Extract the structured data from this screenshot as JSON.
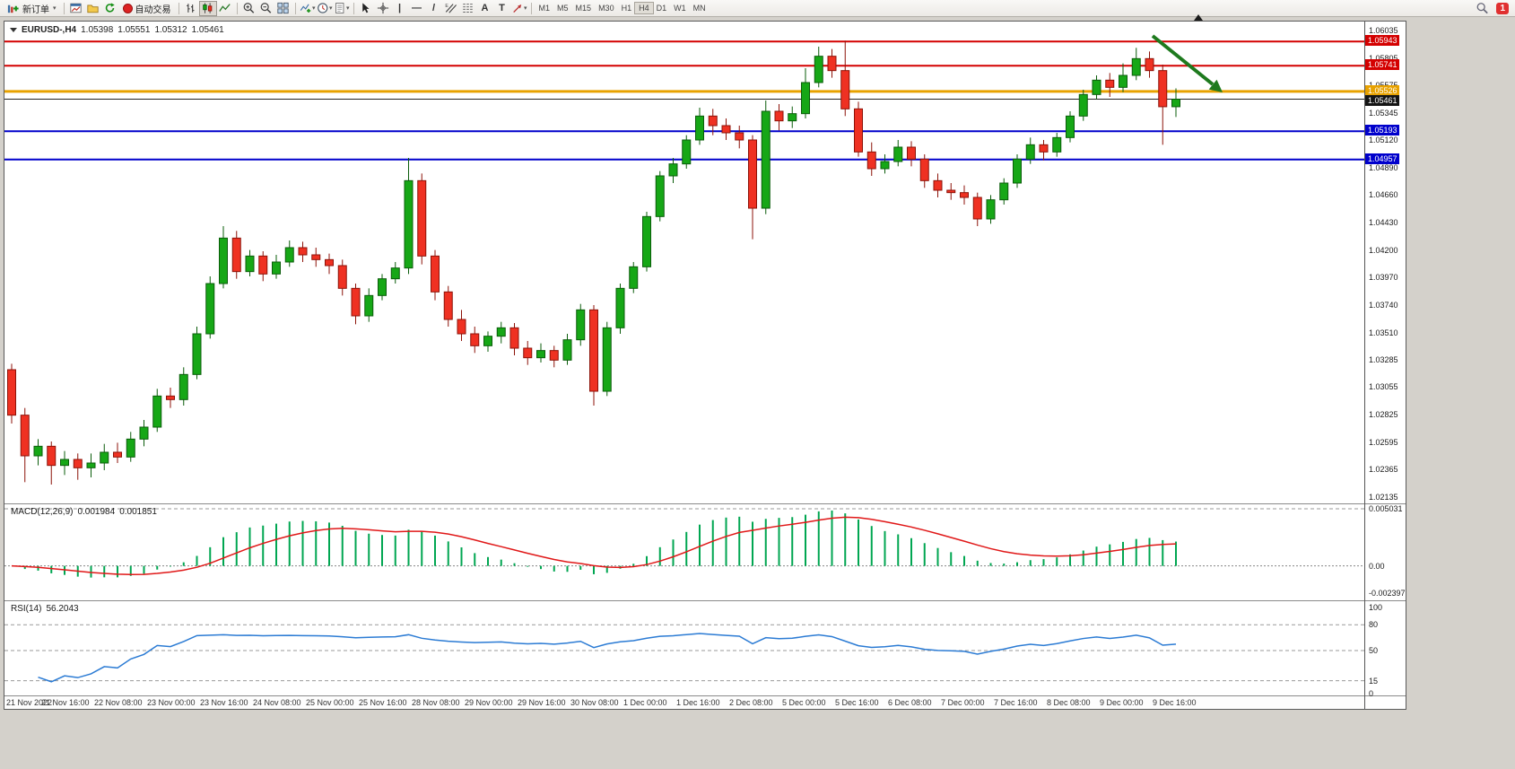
{
  "toolbar": {
    "new_order_label": "新订单",
    "autotrading_label": "自动交易",
    "timeframes": [
      "M1",
      "M5",
      "M15",
      "M30",
      "H1",
      "H4",
      "D1",
      "W1",
      "MN"
    ],
    "active_timeframe": "H4",
    "notification_count": "1"
  },
  "chart": {
    "header": {
      "symbol_period": "EURUSD-,H4",
      "open": "1.05398",
      "high": "1.05551",
      "low": "1.05312",
      "close": "1.05461"
    },
    "price_scale": [
      "1.06035",
      "1.05805",
      "1.05575",
      "1.05345",
      "1.05120",
      "1.04890",
      "1.04660",
      "1.04430",
      "1.04200",
      "1.03970",
      "1.03740",
      "1.03510",
      "1.03285",
      "1.03055",
      "1.02825",
      "1.02595",
      "1.02365",
      "1.02135"
    ],
    "levels": [
      {
        "price": 1.05943,
        "label": "1.05943",
        "color": "#d40000",
        "width": 2
      },
      {
        "price": 1.05741,
        "label": "1.05741",
        "color": "#d40000",
        "width": 2
      },
      {
        "price": 1.05526,
        "label": "1.05526",
        "color": "#e8a200",
        "width": 3
      },
      {
        "price": 1.05193,
        "label": "1.05193",
        "color": "#0000cc",
        "width": 2
      },
      {
        "price": 1.04957,
        "label": "1.04957",
        "color": "#0000cc",
        "width": 2
      }
    ],
    "bid": {
      "price": 1.05461,
      "label": "1.05461",
      "color": "#141414"
    },
    "time_axis": [
      "21 Nov 2022",
      "21 Nov 16:00",
      "22 Nov 08:00",
      "23 Nov 00:00",
      "23 Nov 16:00",
      "24 Nov 08:00",
      "25 Nov 00:00",
      "25 Nov 16:00",
      "28 Nov 08:00",
      "29 Nov 00:00",
      "29 Nov 16:00",
      "30 Nov 08:00",
      "1 Dec 00:00",
      "1 Dec 16:00",
      "2 Dec 08:00",
      "5 Dec 00:00",
      "5 Dec 16:00",
      "6 Dec 08:00",
      "7 Dec 00:00",
      "7 Dec 16:00",
      "8 Dec 08:00",
      "9 Dec 00:00",
      "9 Dec 16:00"
    ],
    "candles": [
      [
        1.032,
        1.0325,
        1.0275,
        1.0282
      ],
      [
        1.0282,
        1.0288,
        1.0226,
        1.0248
      ],
      [
        1.0248,
        1.0262,
        1.024,
        1.0256
      ],
      [
        1.0256,
        1.026,
        1.0224,
        1.024
      ],
      [
        1.024,
        1.0252,
        1.0232,
        1.0245
      ],
      [
        1.0245,
        1.025,
        1.0228,
        1.0238
      ],
      [
        1.0238,
        1.025,
        1.023,
        1.0242
      ],
      [
        1.0242,
        1.0258,
        1.0236,
        1.0251
      ],
      [
        1.0251,
        1.0259,
        1.0242,
        1.0247
      ],
      [
        1.0247,
        1.0268,
        1.0243,
        1.0262
      ],
      [
        1.0262,
        1.0278,
        1.0256,
        1.0272
      ],
      [
        1.0272,
        1.0304,
        1.0268,
        1.0298
      ],
      [
        1.0298,
        1.0305,
        1.0288,
        1.0295
      ],
      [
        1.0295,
        1.0322,
        1.029,
        1.0316
      ],
      [
        1.0316,
        1.0356,
        1.0312,
        1.035
      ],
      [
        1.035,
        1.0398,
        1.0346,
        1.0392
      ],
      [
        1.0392,
        1.044,
        1.0388,
        1.043
      ],
      [
        1.043,
        1.0436,
        1.0396,
        1.0402
      ],
      [
        1.0402,
        1.042,
        1.0398,
        1.0415
      ],
      [
        1.0415,
        1.0419,
        1.0394,
        1.04
      ],
      [
        1.04,
        1.0416,
        1.0396,
        1.041
      ],
      [
        1.041,
        1.0428,
        1.0406,
        1.0422
      ],
      [
        1.0422,
        1.0427,
        1.041,
        1.0416
      ],
      [
        1.0416,
        1.0422,
        1.0406,
        1.0412
      ],
      [
        1.0412,
        1.0417,
        1.04,
        1.0407
      ],
      [
        1.0407,
        1.0412,
        1.0382,
        1.0388
      ],
      [
        1.0388,
        1.0392,
        1.0358,
        1.0365
      ],
      [
        1.0365,
        1.0388,
        1.036,
        1.0382
      ],
      [
        1.0382,
        1.04,
        1.0378,
        1.0396
      ],
      [
        1.0396,
        1.041,
        1.0392,
        1.0405
      ],
      [
        1.0405,
        1.0497,
        1.04,
        1.0478
      ],
      [
        1.0478,
        1.0484,
        1.0408,
        1.0415
      ],
      [
        1.0415,
        1.042,
        1.0378,
        1.0385
      ],
      [
        1.0385,
        1.039,
        1.0356,
        1.0362
      ],
      [
        1.0362,
        1.037,
        1.0344,
        1.035
      ],
      [
        1.035,
        1.0356,
        1.0334,
        1.034
      ],
      [
        1.034,
        1.0352,
        1.0335,
        1.0348
      ],
      [
        1.0348,
        1.036,
        1.0342,
        1.0355
      ],
      [
        1.0355,
        1.0359,
        1.0332,
        1.0338
      ],
      [
        1.0338,
        1.0344,
        1.0324,
        1.033
      ],
      [
        1.033,
        1.0342,
        1.0326,
        1.0336
      ],
      [
        1.0336,
        1.034,
        1.0322,
        1.0328
      ],
      [
        1.0328,
        1.035,
        1.0324,
        1.0345
      ],
      [
        1.0345,
        1.0375,
        1.034,
        1.037
      ],
      [
        1.037,
        1.0374,
        1.029,
        1.0302
      ],
      [
        1.0302,
        1.036,
        1.0298,
        1.0355
      ],
      [
        1.0355,
        1.0392,
        1.035,
        1.0388
      ],
      [
        1.0388,
        1.041,
        1.0384,
        1.0406
      ],
      [
        1.0406,
        1.0452,
        1.0402,
        1.0448
      ],
      [
        1.0448,
        1.0486,
        1.0444,
        1.0482
      ],
      [
        1.0482,
        1.0497,
        1.0476,
        1.0492
      ],
      [
        1.0492,
        1.0516,
        1.0488,
        1.0512
      ],
      [
        1.0512,
        1.0539,
        1.0508,
        1.0532
      ],
      [
        1.0532,
        1.0538,
        1.0516,
        1.0524
      ],
      [
        1.0524,
        1.053,
        1.0512,
        1.0518
      ],
      [
        1.0518,
        1.0524,
        1.0505,
        1.0512
      ],
      [
        1.0512,
        1.0516,
        1.0429,
        1.0455
      ],
      [
        1.0455,
        1.0545,
        1.045,
        1.0536
      ],
      [
        1.0536,
        1.0542,
        1.052,
        1.0528
      ],
      [
        1.0528,
        1.054,
        1.0522,
        1.0534
      ],
      [
        1.0534,
        1.0572,
        1.053,
        1.056
      ],
      [
        1.056,
        1.059,
        1.0556,
        1.0582
      ],
      [
        1.0582,
        1.0588,
        1.0564,
        1.057
      ],
      [
        1.057,
        1.0595,
        1.0532,
        1.0538
      ],
      [
        1.0538,
        1.0544,
        1.0498,
        1.0502
      ],
      [
        1.0502,
        1.051,
        1.0482,
        1.0488
      ],
      [
        1.0488,
        1.05,
        1.0484,
        1.0494
      ],
      [
        1.0494,
        1.0512,
        1.049,
        1.0506
      ],
      [
        1.0506,
        1.0511,
        1.049,
        1.0496
      ],
      [
        1.0496,
        1.05,
        1.0472,
        1.0478
      ],
      [
        1.0478,
        1.0484,
        1.0464,
        1.047
      ],
      [
        1.047,
        1.0476,
        1.0462,
        1.0468
      ],
      [
        1.0468,
        1.0474,
        1.0458,
        1.0464
      ],
      [
        1.0464,
        1.0468,
        1.044,
        1.0446
      ],
      [
        1.0446,
        1.0466,
        1.0442,
        1.0462
      ],
      [
        1.0462,
        1.048,
        1.0458,
        1.0476
      ],
      [
        1.0476,
        1.05,
        1.0472,
        1.0496
      ],
      [
        1.0496,
        1.0514,
        1.0492,
        1.0508
      ],
      [
        1.0508,
        1.0512,
        1.0495,
        1.0502
      ],
      [
        1.0502,
        1.0518,
        1.0498,
        1.0514
      ],
      [
        1.0514,
        1.0536,
        1.051,
        1.0532
      ],
      [
        1.0532,
        1.0554,
        1.0528,
        1.055
      ],
      [
        1.055,
        1.0566,
        1.0546,
        1.0562
      ],
      [
        1.0562,
        1.0568,
        1.0548,
        1.0556
      ],
      [
        1.0556,
        1.0576,
        1.0552,
        1.0566
      ],
      [
        1.0566,
        1.0589,
        1.0562,
        1.058
      ],
      [
        1.058,
        1.0586,
        1.0564,
        1.057
      ],
      [
        1.057,
        1.0575,
        1.0508,
        1.05398
      ],
      [
        1.05398,
        1.05551,
        1.05312,
        1.05461
      ]
    ],
    "colors": {
      "up": "#16a716",
      "up_border": "#0a5c0a",
      "down": "#ef3122",
      "down_border": "#8c1208",
      "bid_line": "#222222",
      "macd_hist": "#00a651",
      "macd_signal": "#e01818",
      "rsi_line": "#2b7bd4"
    }
  },
  "macd": {
    "title": "MACD(12,26,9)",
    "main_value": "0.001984",
    "signal_value": "0.001851",
    "params": {
      "fast": 12,
      "slow": 26,
      "signal": 9
    },
    "scale_labels": [
      "0.005031",
      "0.00",
      "-0.002397"
    ],
    "scale_values": [
      0.005031,
      0,
      -0.002397
    ],
    "range": {
      "max": 0.005031,
      "min": -0.002397
    }
  },
  "rsi": {
    "title": "RSI(14)",
    "value": "56.2043",
    "period": 14,
    "scale_labels": [
      "100",
      "80",
      "50",
      "15",
      "0"
    ],
    "scale_values": [
      100,
      80,
      50,
      15,
      0
    ],
    "levels": [
      80,
      50,
      15
    ]
  },
  "annotation": {
    "arrow_color": "#1e7a1e"
  }
}
